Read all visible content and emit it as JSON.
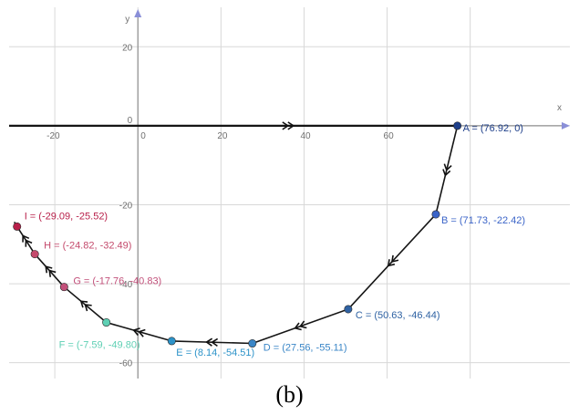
{
  "figure": {
    "caption": "(b)"
  },
  "axes": {
    "x_name": "x",
    "y_name": "y",
    "x_ticks": [
      {
        "v": -20,
        "label": "-20"
      },
      {
        "v": 0,
        "label": "0"
      },
      {
        "v": 20,
        "label": "20"
      },
      {
        "v": 40,
        "label": "40"
      },
      {
        "v": 60,
        "label": "60"
      }
    ],
    "y_ticks": [
      {
        "v": 20,
        "label": "20"
      },
      {
        "v": 0,
        "label": "0"
      },
      {
        "v": -20,
        "label": "-20"
      },
      {
        "v": -40,
        "label": "-40"
      },
      {
        "v": -60,
        "label": "-60"
      }
    ],
    "x_gridlines": [
      -20,
      0,
      20,
      40,
      60,
      80
    ],
    "y_gridlines": [
      20,
      0,
      -20,
      -40,
      -60
    ],
    "xlim": [
      -31,
      104
    ],
    "ylim": [
      -64,
      30
    ],
    "colors": {
      "axis": "#8e8e8e",
      "grid": "#d8d8d8",
      "path": "#1a1a1a"
    }
  },
  "chart_data": {
    "type": "scatter",
    "points": [
      {
        "name": "A",
        "x": 76.92,
        "y": 0,
        "label": "A = (76.92, 0)",
        "color": "#1e3f8a"
      },
      {
        "name": "B",
        "x": 71.73,
        "y": -22.42,
        "label": "B = (71.73, -22.42)",
        "color": "#3b64c8"
      },
      {
        "name": "C",
        "x": 50.63,
        "y": -46.44,
        "label": "C = (50.63, -46.44)",
        "color": "#2f62a3"
      },
      {
        "name": "D",
        "x": 27.56,
        "y": -55.11,
        "label": "D = (27.56, -55.11)",
        "color": "#3a86c7"
      },
      {
        "name": "E",
        "x": 8.14,
        "y": -54.51,
        "label": "E = (8.14, -54.51)",
        "color": "#2d93c9"
      },
      {
        "name": "F",
        "x": -7.59,
        "y": -49.8,
        "label": "F = (-7.59, -49.80)",
        "color": "#5fd0b4"
      },
      {
        "name": "G",
        "x": -17.76,
        "y": -40.83,
        "label": "G = (-17.76, -40.83)",
        "color": "#c2507a"
      },
      {
        "name": "H",
        "x": -24.82,
        "y": -32.49,
        "label": "H = (-24.82, -32.49)",
        "color": "#c44a6c"
      },
      {
        "name": "I",
        "x": -29.09,
        "y": -25.52,
        "label": "I = (-29.09, -25.52)",
        "color": "#b8204a"
      }
    ],
    "path_order": [
      "A",
      "B",
      "C",
      "D",
      "E",
      "F",
      "G",
      "H",
      "I"
    ],
    "axis_arrow_start_x": -31
  }
}
